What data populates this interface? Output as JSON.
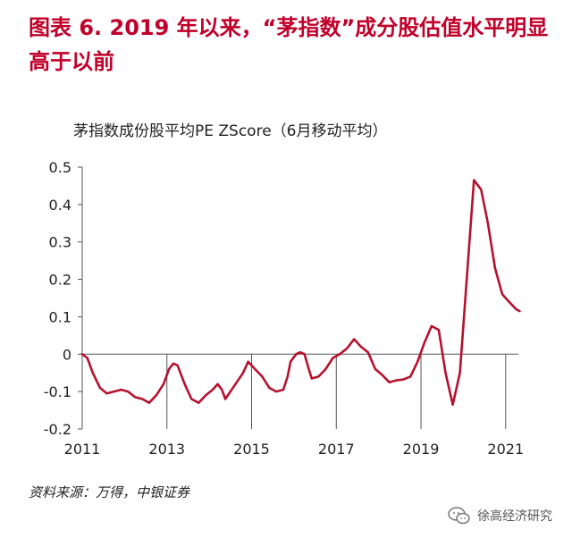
{
  "figure_title": "图表 6. 2019 年以来，“茅指数”成分股估值水平明显高于以前",
  "source_note": "资料来源：万得，中银证券",
  "brand": {
    "name": "徐高经济研究",
    "icon": "wechat-icon"
  },
  "colors": {
    "title": "#c0002a",
    "line": "#b5122e",
    "axis": "#555555"
  },
  "chart_data": {
    "type": "line",
    "title": "茅指数成份股平均PE ZScore（6月移动平均）",
    "xlabel": "",
    "ylabel": "",
    "xlim": [
      2011,
      2021.3
    ],
    "ylim": [
      -0.2,
      0.5
    ],
    "y_ticks": [
      -0.2,
      -0.1,
      0,
      0.1,
      0.2,
      0.3,
      0.4,
      0.5
    ],
    "y_tick_labels": [
      "-0.2",
      "-0.1",
      "0",
      "0.1",
      "0.2",
      "0.3",
      "0.4",
      "0.5"
    ],
    "x_ticks": [
      2011,
      2013,
      2015,
      2017,
      2019,
      2021
    ],
    "x_tick_labels": [
      "2011",
      "2013",
      "2015",
      "2017",
      "2019",
      "2021"
    ],
    "grid": false,
    "legend": "none",
    "series": [
      {
        "color": "#b5122e",
        "points": [
          [
            2011.0,
            0.0
          ],
          [
            2011.12,
            -0.01
          ],
          [
            2011.25,
            -0.05
          ],
          [
            2011.42,
            -0.09
          ],
          [
            2011.58,
            -0.105
          ],
          [
            2011.75,
            -0.1
          ],
          [
            2011.92,
            -0.095
          ],
          [
            2012.08,
            -0.1
          ],
          [
            2012.25,
            -0.115
          ],
          [
            2012.42,
            -0.12
          ],
          [
            2012.58,
            -0.13
          ],
          [
            2012.75,
            -0.11
          ],
          [
            2012.92,
            -0.08
          ],
          [
            2013.05,
            -0.04
          ],
          [
            2013.15,
            -0.025
          ],
          [
            2013.25,
            -0.03
          ],
          [
            2013.42,
            -0.08
          ],
          [
            2013.58,
            -0.12
          ],
          [
            2013.75,
            -0.13
          ],
          [
            2013.92,
            -0.11
          ],
          [
            2014.08,
            -0.095
          ],
          [
            2014.2,
            -0.08
          ],
          [
            2014.3,
            -0.095
          ],
          [
            2014.38,
            -0.12
          ],
          [
            2014.5,
            -0.1
          ],
          [
            2014.65,
            -0.075
          ],
          [
            2014.8,
            -0.05
          ],
          [
            2014.92,
            -0.02
          ],
          [
            2015.08,
            -0.04
          ],
          [
            2015.25,
            -0.06
          ],
          [
            2015.42,
            -0.09
          ],
          [
            2015.58,
            -0.1
          ],
          [
            2015.75,
            -0.095
          ],
          [
            2015.85,
            -0.06
          ],
          [
            2015.92,
            -0.02
          ],
          [
            2016.05,
            0.0
          ],
          [
            2016.15,
            0.005
          ],
          [
            2016.25,
            0.0
          ],
          [
            2016.35,
            -0.04
          ],
          [
            2016.42,
            -0.065
          ],
          [
            2016.58,
            -0.06
          ],
          [
            2016.75,
            -0.04
          ],
          [
            2016.92,
            -0.01
          ],
          [
            2017.08,
            0.0
          ],
          [
            2017.25,
            0.015
          ],
          [
            2017.42,
            0.04
          ],
          [
            2017.58,
            0.02
          ],
          [
            2017.75,
            0.005
          ],
          [
            2017.92,
            -0.04
          ],
          [
            2018.08,
            -0.055
          ],
          [
            2018.25,
            -0.075
          ],
          [
            2018.42,
            -0.07
          ],
          [
            2018.58,
            -0.068
          ],
          [
            2018.75,
            -0.06
          ],
          [
            2018.92,
            -0.02
          ],
          [
            2019.08,
            0.03
          ],
          [
            2019.25,
            0.075
          ],
          [
            2019.42,
            0.065
          ],
          [
            2019.58,
            -0.05
          ],
          [
            2019.75,
            -0.135
          ],
          [
            2019.92,
            -0.05
          ],
          [
            2020.08,
            0.2
          ],
          [
            2020.25,
            0.465
          ],
          [
            2020.42,
            0.44
          ],
          [
            2020.58,
            0.35
          ],
          [
            2020.75,
            0.23
          ],
          [
            2020.92,
            0.16
          ],
          [
            2021.08,
            0.14
          ],
          [
            2021.25,
            0.12
          ],
          [
            2021.33,
            0.115
          ]
        ]
      }
    ]
  }
}
